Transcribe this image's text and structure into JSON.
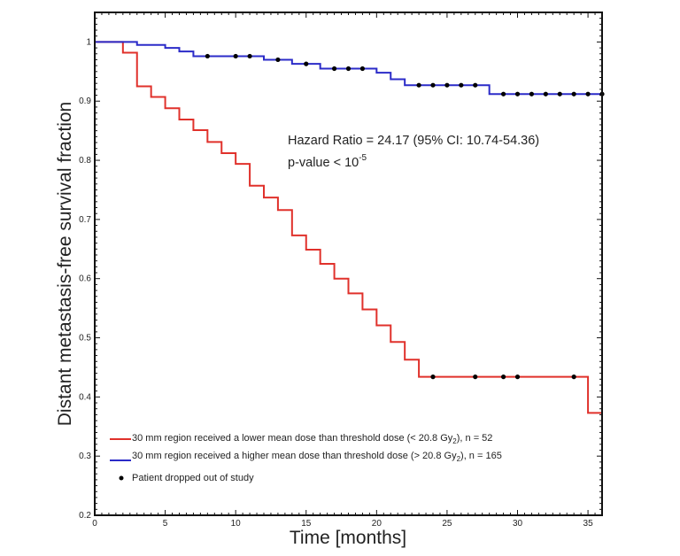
{
  "chart_data": {
    "type": "line",
    "subtype": "kaplan-meier step",
    "xlabel": "Time [months]",
    "ylabel": "Distant metastasis-free survival fraction",
    "xlim": [
      0,
      36
    ],
    "ylim": [
      0.2,
      1.05
    ],
    "xticks": [
      0,
      5,
      10,
      15,
      20,
      25,
      30,
      35
    ],
    "yticks": [
      0.2,
      0.3,
      0.4,
      0.5,
      0.6,
      0.7,
      0.8,
      0.9,
      1
    ],
    "ytick_labels": [
      "0.2",
      "0.3",
      "0.4",
      "0.5",
      "0.6",
      "0.7",
      "0.8",
      "0.9",
      "1"
    ],
    "grid": false,
    "legend_position": "bottom-left",
    "annotations": {
      "hazard_ratio": "Hazard Ratio = 24.17 (95% CI: 10.74-54.36)",
      "p_value_prefix": "p-value < 10",
      "p_value_exponent": "-5"
    },
    "series": [
      {
        "name_prefix": "30 mm region received a lower mean dose than threshold dose (< 20.8 Gy",
        "name_sub": "2",
        "name_suffix": "), n = 52",
        "color": "#e0312b",
        "steps": [
          [
            0,
            1.0
          ],
          [
            2,
            0.982
          ],
          [
            3,
            0.925
          ],
          [
            4,
            0.907
          ],
          [
            5,
            0.888
          ],
          [
            6,
            0.869
          ],
          [
            7,
            0.851
          ],
          [
            8,
            0.831
          ],
          [
            9,
            0.812
          ],
          [
            10,
            0.794
          ],
          [
            11,
            0.757
          ],
          [
            12,
            0.737
          ],
          [
            13,
            0.716
          ],
          [
            14,
            0.673
          ],
          [
            15,
            0.649
          ],
          [
            16,
            0.625
          ],
          [
            17,
            0.6
          ],
          [
            18,
            0.575
          ],
          [
            19,
            0.548
          ],
          [
            20,
            0.521
          ],
          [
            21,
            0.493
          ],
          [
            22,
            0.463
          ],
          [
            23,
            0.434
          ],
          [
            35,
            0.373
          ]
        ],
        "censored": [
          24,
          27,
          29,
          30,
          34
        ]
      },
      {
        "name_prefix": "30 mm region received a higher mean dose than threshold dose (> 20.8 Gy",
        "name_sub": "2",
        "name_suffix": "), n = 165",
        "color": "#2b2bc8",
        "steps": [
          [
            0,
            1.0
          ],
          [
            3,
            0.995
          ],
          [
            5,
            0.99
          ],
          [
            6,
            0.984
          ],
          [
            7,
            0.976
          ],
          [
            12,
            0.97
          ],
          [
            14,
            0.963
          ],
          [
            16,
            0.955
          ],
          [
            20,
            0.948
          ],
          [
            21,
            0.937
          ],
          [
            22,
            0.927
          ],
          [
            28,
            0.912
          ]
        ],
        "censored": [
          8,
          10,
          11,
          13,
          15,
          17,
          18,
          19,
          23,
          24,
          25,
          26,
          27,
          29,
          30,
          31,
          32,
          33,
          34,
          35,
          36
        ]
      }
    ],
    "censor_legend": "Patient dropped out of study",
    "censor_color": "#000000"
  }
}
